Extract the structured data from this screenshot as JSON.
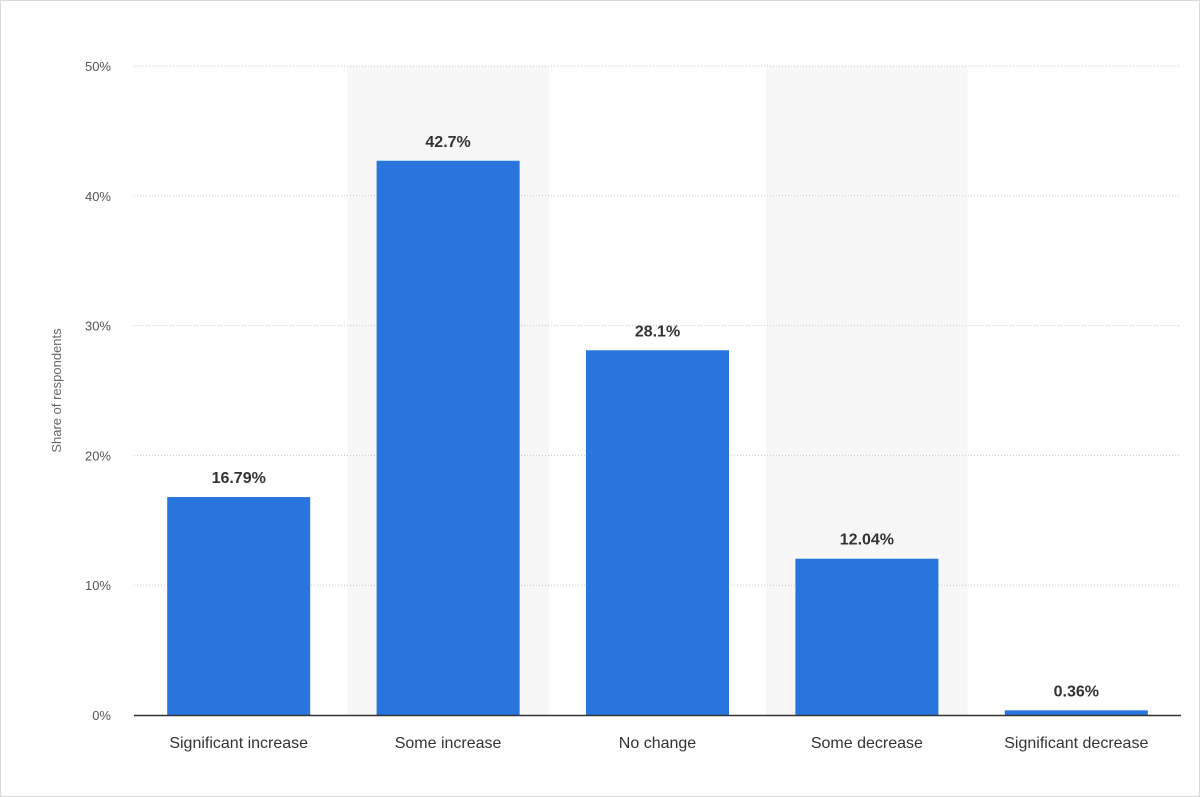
{
  "colors": {
    "bar": "#2775dd",
    "band": "#f7f7f7",
    "grid": "#c8c8c8",
    "axis": "#333333"
  },
  "chart_data": {
    "type": "bar",
    "title": "",
    "xlabel": "",
    "ylabel": "Share of respondents",
    "categories": [
      "Significant increase",
      "Some increase",
      "No change",
      "Some decrease",
      "Significant decrease"
    ],
    "values": [
      16.79,
      42.7,
      28.1,
      12.04,
      0.36
    ],
    "value_labels": [
      "16.79%",
      "42.7%",
      "28.1%",
      "12.04%",
      "0.36%"
    ],
    "ylim": [
      0,
      50
    ],
    "yticks": [
      0,
      10,
      20,
      30,
      40,
      50
    ],
    "ytick_labels": [
      "0%",
      "10%",
      "20%",
      "30%",
      "40%",
      "50%"
    ],
    "grid": true,
    "grid_style": "dotted",
    "legend": "none",
    "alternating_bands": true
  }
}
